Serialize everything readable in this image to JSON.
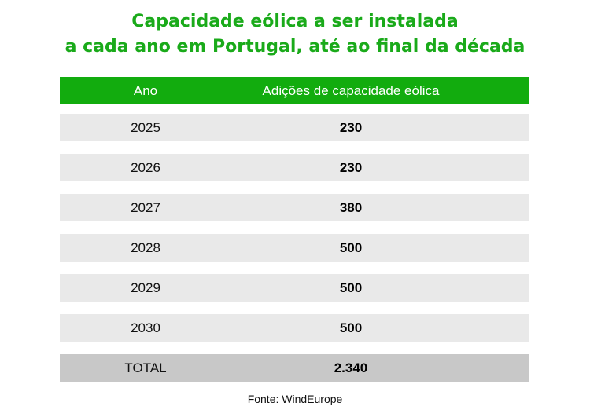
{
  "chart_data": {
    "type": "table",
    "title_lines": [
      "Capacidade eólica a ser instalada",
      "a cada ano em Portugal, até ao final da década"
    ],
    "columns": [
      "Ano",
      "Adições de capacidade eólica"
    ],
    "rows": [
      {
        "year": "2025",
        "value": "230"
      },
      {
        "year": "2026",
        "value": "230"
      },
      {
        "year": "2027",
        "value": "380"
      },
      {
        "year": "2028",
        "value": "500"
      },
      {
        "year": "2029",
        "value": "500"
      },
      {
        "year": "2030",
        "value": "500"
      }
    ],
    "total": {
      "label": "TOTAL",
      "value": "2.340"
    },
    "source": "Fonte: WindEurope"
  },
  "colors": {
    "accent": "#12ac0e",
    "title": "#1aaa1a",
    "row_bg": "#e9e9e9",
    "total_bg": "#c8c8c8"
  }
}
